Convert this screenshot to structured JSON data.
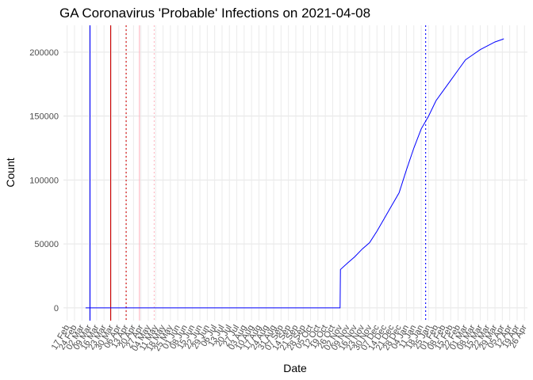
{
  "chart_data": {
    "type": "line",
    "title": "GA Coronavirus 'Probable' Infections on 2021-04-08",
    "x_label": "Date",
    "y_label": "Count",
    "xlim": [
      -0.5,
      62.4
    ],
    "ylim": [
      -10000,
      221000
    ],
    "xticks": [
      {
        "value": 0,
        "label": "17 Feb"
      },
      {
        "value": 1,
        "label": "24 Feb"
      },
      {
        "value": 2,
        "label": "02 Mar"
      },
      {
        "value": 3,
        "label": "09 Mar"
      },
      {
        "value": 4,
        "label": "16 Mar"
      },
      {
        "value": 5,
        "label": "23 Mar"
      },
      {
        "value": 6,
        "label": "30 Mar"
      },
      {
        "value": 7,
        "label": "06 Apr"
      },
      {
        "value": 8,
        "label": "13 Apr"
      },
      {
        "value": 9,
        "label": "20 Apr"
      },
      {
        "value": 10,
        "label": "27 Apr"
      },
      {
        "value": 11,
        "label": "04 May"
      },
      {
        "value": 12,
        "label": "11 May"
      },
      {
        "value": 13,
        "label": "18 May"
      },
      {
        "value": 14,
        "label": "25 May"
      },
      {
        "value": 15,
        "label": "01 Jun"
      },
      {
        "value": 16,
        "label": "08 Jun"
      },
      {
        "value": 17,
        "label": "15 Jun"
      },
      {
        "value": 18,
        "label": "22 Jun"
      },
      {
        "value": 19,
        "label": "29 Jun"
      },
      {
        "value": 20,
        "label": "06 Jul"
      },
      {
        "value": 21,
        "label": "13 Jul"
      },
      {
        "value": 22,
        "label": "20 Jul"
      },
      {
        "value": 23,
        "label": "27 Jul"
      },
      {
        "value": 24,
        "label": "03 Aug"
      },
      {
        "value": 25,
        "label": "10 Aug"
      },
      {
        "value": 26,
        "label": "17 Aug"
      },
      {
        "value": 27,
        "label": "24 Aug"
      },
      {
        "value": 28,
        "label": "31 Aug"
      },
      {
        "value": 29,
        "label": "07 Sep"
      },
      {
        "value": 30,
        "label": "14 Sep"
      },
      {
        "value": 31,
        "label": "21 Sep"
      },
      {
        "value": 32,
        "label": "28 Sep"
      },
      {
        "value": 33,
        "label": "05 Oct"
      },
      {
        "value": 34,
        "label": "12 Oct"
      },
      {
        "value": 35,
        "label": "19 Oct"
      },
      {
        "value": 36,
        "label": "26 Oct"
      },
      {
        "value": 37,
        "label": "02 Nov"
      },
      {
        "value": 38,
        "label": "09 Nov"
      },
      {
        "value": 39,
        "label": "16 Nov"
      },
      {
        "value": 40,
        "label": "23 Nov"
      },
      {
        "value": 41,
        "label": "30 Nov"
      },
      {
        "value": 42,
        "label": "07 Dec"
      },
      {
        "value": 43,
        "label": "14 Dec"
      },
      {
        "value": 44,
        "label": "21 Dec"
      },
      {
        "value": 45,
        "label": "28 Dec"
      },
      {
        "value": 46,
        "label": "04 Jan"
      },
      {
        "value": 47,
        "label": "11 Jan"
      },
      {
        "value": 48,
        "label": "18 Jan"
      },
      {
        "value": 49,
        "label": "25 Jan"
      },
      {
        "value": 50,
        "label": "01 Feb"
      },
      {
        "value": 51,
        "label": "08 Feb"
      },
      {
        "value": 52,
        "label": "15 Feb"
      },
      {
        "value": 53,
        "label": "22 Feb"
      },
      {
        "value": 54,
        "label": "01 Mar"
      },
      {
        "value": 55,
        "label": "08 Mar"
      },
      {
        "value": 56,
        "label": "15 Mar"
      },
      {
        "value": 57,
        "label": "22 Mar"
      },
      {
        "value": 58,
        "label": "29 Mar"
      },
      {
        "value": 59,
        "label": "05 Apr"
      },
      {
        "value": 60,
        "label": "12 Apr"
      },
      {
        "value": 61,
        "label": "19 Apr"
      },
      {
        "value": 62,
        "label": "26 Apr"
      }
    ],
    "yticks": [
      0,
      50000,
      100000,
      150000,
      200000
    ],
    "grid": true,
    "vlines": [
      {
        "x": 3.1,
        "color": "#0000ff",
        "dashed": false
      },
      {
        "x": 5.9,
        "color": "#cc0000",
        "dashed": false
      },
      {
        "x": 8.0,
        "color": "#cc0000",
        "dashed": true
      },
      {
        "x": 9.8,
        "color": "#ffb6c1",
        "dashed": false
      },
      {
        "x": 11.8,
        "color": "#ffb6c1",
        "dashed": true
      },
      {
        "x": 48.6,
        "color": "#0000ff",
        "dashed": true
      }
    ],
    "x": [
      2.5,
      37,
      37.05,
      38,
      39,
      40,
      41,
      42,
      43,
      44,
      45,
      46,
      47,
      48,
      49,
      50,
      51,
      52,
      53,
      54,
      55,
      56,
      57,
      58,
      59,
      59.2
    ],
    "series": [
      {
        "color": "#0000ff",
        "values": [
          0,
          0,
          30000,
          35000,
          40000,
          46000,
          51000,
          60000,
          70000,
          80000,
          90000,
          108000,
          125000,
          140000,
          150000,
          162000,
          170000,
          178000,
          186000,
          194000,
          198000,
          202000,
          205000,
          208000,
          210000,
          210500
        ]
      }
    ]
  }
}
